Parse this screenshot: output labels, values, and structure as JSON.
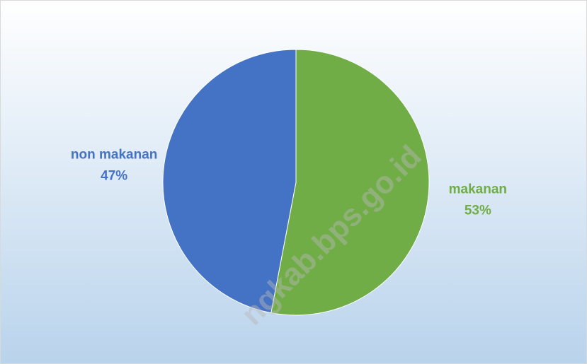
{
  "chart_data": {
    "type": "pie",
    "categories": [
      "makanan",
      "non makanan"
    ],
    "values": [
      53,
      47
    ],
    "value_labels": [
      "53%",
      "47%"
    ],
    "colors": [
      "#70ad47",
      "#4472c4"
    ],
    "watermark": "ngkab.bps.go.id"
  }
}
